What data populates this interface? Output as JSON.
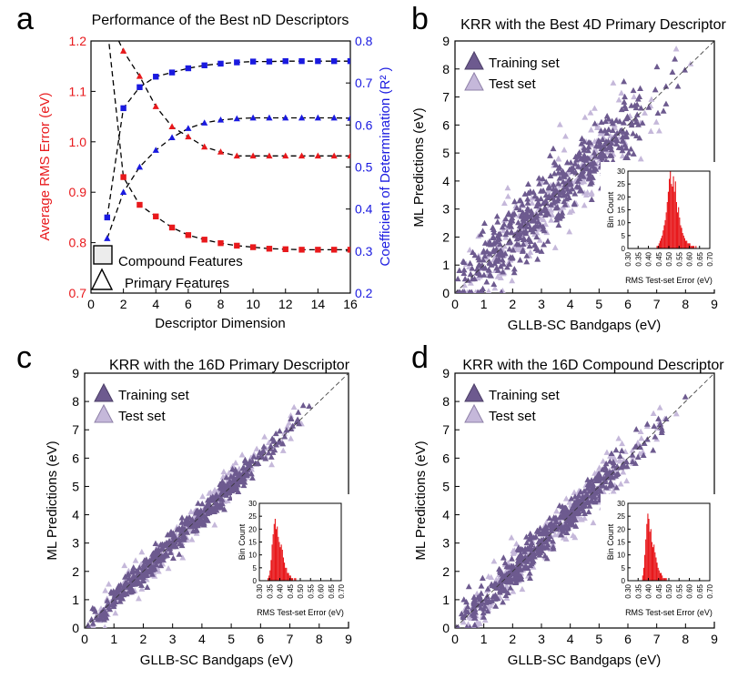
{
  "figure": {
    "panels": [
      {
        "letter": "a",
        "title": "Performance of the Best nD Descriptors"
      },
      {
        "letter": "b",
        "title": "KRR with the Best 4D Primary Descriptor"
      },
      {
        "letter": "c",
        "title": "KRR with the 16D Primary Descriptor"
      },
      {
        "letter": "d",
        "title": "KRR with the 16D Compound Descriptor"
      }
    ]
  },
  "chart_data": [
    {
      "panel": "a",
      "type": "line",
      "title": "Performance of the Best nD Descriptors",
      "xlabel": "Descriptor Dimension",
      "ylabel_left": "Average RMS Error (eV)",
      "ylabel_right": "Coefficient of Determination (R² )",
      "xlim": [
        0,
        16
      ],
      "ylim_left": [
        0.7,
        1.2
      ],
      "ylim_right": [
        0.2,
        0.8
      ],
      "x_ticks": [
        "0",
        "2",
        "4",
        "6",
        "8",
        "10",
        "12",
        "14",
        "16"
      ],
      "y_ticks_left": [
        "0.7",
        "0.8",
        "0.9",
        "1.0",
        "1.1",
        "1.2"
      ],
      "y_ticks_right": [
        "0.2",
        "0.3",
        "0.4",
        "0.5",
        "0.6",
        "0.7",
        "0.8"
      ],
      "colors": {
        "left_axis": "#e8191c",
        "right_axis": "#1a1ae0",
        "fit": "#000000"
      },
      "legend": {
        "position": "bottom-left",
        "entries": [
          "Compound Features",
          "Primary Features"
        ]
      },
      "series": [
        {
          "marker": "square",
          "axis": "left",
          "color": "#e8191c",
          "x": [
            1,
            2,
            3,
            4,
            5,
            6,
            7,
            8,
            9,
            10,
            11,
            12,
            13,
            14,
            15,
            16
          ],
          "values": [
            1.23,
            0.93,
            0.875,
            0.852,
            0.83,
            0.815,
            0.806,
            0.799,
            0.794,
            0.791,
            0.788,
            0.787,
            0.786,
            0.786,
            0.786,
            0.786
          ]
        },
        {
          "marker": "triangle",
          "axis": "left",
          "color": "#e8191c",
          "x": [
            1,
            2,
            3,
            4,
            5,
            6,
            7,
            8,
            9,
            10,
            11,
            12,
            13,
            14,
            15,
            16
          ],
          "values": [
            1.25,
            1.18,
            1.13,
            1.07,
            1.03,
            1.01,
            0.99,
            0.98,
            0.972,
            0.972,
            0.972,
            0.972,
            0.972,
            0.972,
            0.972,
            0.972
          ]
        },
        {
          "marker": "square",
          "axis": "right",
          "color": "#1a1ae0",
          "x": [
            1,
            2,
            3,
            4,
            5,
            6,
            7,
            8,
            9,
            10,
            11,
            12,
            13,
            14,
            15,
            16
          ],
          "values": [
            0.38,
            0.64,
            0.69,
            0.715,
            0.725,
            0.735,
            0.742,
            0.746,
            0.749,
            0.751,
            0.751,
            0.752,
            0.752,
            0.752,
            0.752,
            0.752
          ]
        },
        {
          "marker": "triangle",
          "axis": "right",
          "color": "#1a1ae0",
          "x": [
            1,
            2,
            3,
            4,
            5,
            6,
            7,
            8,
            9,
            10,
            11,
            12,
            13,
            14,
            15,
            16
          ],
          "values": [
            0.33,
            0.44,
            0.5,
            0.54,
            0.57,
            0.592,
            0.605,
            0.612,
            0.615,
            0.617,
            0.617,
            0.617,
            0.617,
            0.617,
            0.617,
            0.616
          ]
        }
      ]
    },
    {
      "panel": "b",
      "type": "scatter",
      "title": "KRR with the Best 4D Primary Descriptor",
      "xlabel": "GLLB-SC Bandgaps (eV)",
      "ylabel": "ML Predictions (eV)",
      "xlim": [
        0,
        9
      ],
      "ylim": [
        0,
        9
      ],
      "ticks": [
        "0",
        "1",
        "2",
        "3",
        "4",
        "5",
        "6",
        "7",
        "8",
        "9"
      ],
      "legend": {
        "position": "top-left",
        "entries": [
          "Training set",
          "Test set"
        ]
      },
      "series_colors": {
        "Training set": "#6d5a8f",
        "Test set": "#c5b8da"
      },
      "spread_ev": 0.6,
      "inset": {
        "type": "bar",
        "xlabel": "RMS Test-set Error (eV)",
        "ylabel": "Bin Count",
        "xlim": [
          0.3,
          0.7
        ],
        "ylim": [
          0,
          30
        ],
        "x_ticks": [
          "0.30",
          "0.35",
          "0.40",
          "0.45",
          "0.50",
          "0.55",
          "0.60",
          "0.65",
          "0.70"
        ],
        "y_ticks": [
          "0",
          "5",
          "10",
          "15",
          "20",
          "25",
          "30"
        ],
        "color": "#e8191c",
        "bin_width": 0.005,
        "x": [
          0.44,
          0.445,
          0.45,
          0.455,
          0.46,
          0.465,
          0.47,
          0.475,
          0.48,
          0.485,
          0.49,
          0.495,
          0.5,
          0.505,
          0.51,
          0.515,
          0.52,
          0.525,
          0.53,
          0.535,
          0.54,
          0.545,
          0.55,
          0.555,
          0.56,
          0.565,
          0.57,
          0.575,
          0.58,
          0.585,
          0.59,
          0.595,
          0.6,
          0.605,
          0.61,
          0.615,
          0.62,
          0.625,
          0.63
        ],
        "values": [
          1,
          1,
          2,
          3,
          4,
          5,
          7,
          9,
          11,
          14,
          18,
          22,
          27,
          30,
          25,
          24,
          28,
          22,
          26,
          18,
          14,
          16,
          12,
          9,
          8,
          6,
          5,
          4,
          3,
          3,
          2,
          2,
          2,
          1,
          1,
          1,
          1,
          0,
          1
        ]
      }
    },
    {
      "panel": "c",
      "type": "scatter",
      "title": "KRR with the 16D Primary Descriptor",
      "xlabel": "GLLB-SC Bandgaps (eV)",
      "ylabel": "ML Predictions (eV)",
      "xlim": [
        0,
        9
      ],
      "ylim": [
        0,
        9
      ],
      "ticks": [
        "0",
        "1",
        "2",
        "3",
        "4",
        "5",
        "6",
        "7",
        "8",
        "9"
      ],
      "legend": {
        "position": "top-left",
        "entries": [
          "Training set",
          "Test set"
        ]
      },
      "series_colors": {
        "Training set": "#6d5a8f",
        "Test set": "#c5b8da"
      },
      "spread_ev": 0.22,
      "inset": {
        "type": "bar",
        "xlabel": "RMS Test-set Error (eV)",
        "ylabel": "Bin Count",
        "xlim": [
          0.3,
          0.7
        ],
        "ylim": [
          0,
          30
        ],
        "x_ticks": [
          "0.30",
          "0.35",
          "0.40",
          "0.45",
          "0.50",
          "0.55",
          "0.60",
          "0.65",
          "0.70"
        ],
        "y_ticks": [
          "0",
          "5",
          "10",
          "15",
          "20",
          "25",
          "30"
        ],
        "color": "#e8191c",
        "bin_width": 0.005,
        "x": [
          0.34,
          0.345,
          0.35,
          0.355,
          0.36,
          0.365,
          0.37,
          0.375,
          0.38,
          0.385,
          0.39,
          0.395,
          0.4,
          0.405,
          0.41,
          0.415,
          0.42,
          0.425,
          0.43,
          0.435,
          0.44,
          0.445,
          0.45,
          0.455,
          0.46,
          0.465,
          0.47,
          0.475
        ],
        "values": [
          1,
          2,
          4,
          8,
          14,
          18,
          22,
          24,
          20,
          21,
          17,
          15,
          13,
          14,
          12,
          9,
          7,
          5,
          5,
          3,
          3,
          2,
          2,
          1,
          1,
          0,
          1,
          1
        ]
      }
    },
    {
      "panel": "d",
      "type": "scatter",
      "title": "KRR with the 16D Compound Descriptor",
      "xlabel": "GLLB-SC Bandgaps (eV)",
      "ylabel": "ML Predictions (eV)",
      "xlim": [
        0,
        9
      ],
      "ylim": [
        0,
        9
      ],
      "ticks": [
        "0",
        "1",
        "2",
        "3",
        "4",
        "5",
        "6",
        "7",
        "8",
        "9"
      ],
      "legend": {
        "position": "top-left",
        "entries": [
          "Training set",
          "Test set"
        ]
      },
      "series_colors": {
        "Training set": "#6d5a8f",
        "Test set": "#c5b8da"
      },
      "spread_ev": 0.3,
      "inset": {
        "type": "bar",
        "xlabel": "RMS Test-set Error (eV)",
        "ylabel": "Bin Count",
        "xlim": [
          0.3,
          0.7
        ],
        "ylim": [
          0,
          30
        ],
        "x_ticks": [
          "0.30",
          "0.35",
          "0.40",
          "0.45",
          "0.50",
          "0.55",
          "0.60",
          "0.65",
          "0.70"
        ],
        "y_ticks": [
          "0",
          "5",
          "10",
          "15",
          "20",
          "25",
          "30"
        ],
        "color": "#e8191c",
        "bin_width": 0.005,
        "x": [
          0.37,
          0.375,
          0.38,
          0.385,
          0.39,
          0.395,
          0.4,
          0.405,
          0.41,
          0.415,
          0.42,
          0.425,
          0.43,
          0.435,
          0.44,
          0.445,
          0.45,
          0.455,
          0.46,
          0.465,
          0.47,
          0.475,
          0.48,
          0.485
        ],
        "values": [
          2,
          5,
          10,
          16,
          22,
          26,
          24,
          19,
          20,
          15,
          13,
          14,
          11,
          9,
          7,
          5,
          4,
          3,
          3,
          2,
          1,
          1,
          1,
          1
        ]
      }
    }
  ]
}
